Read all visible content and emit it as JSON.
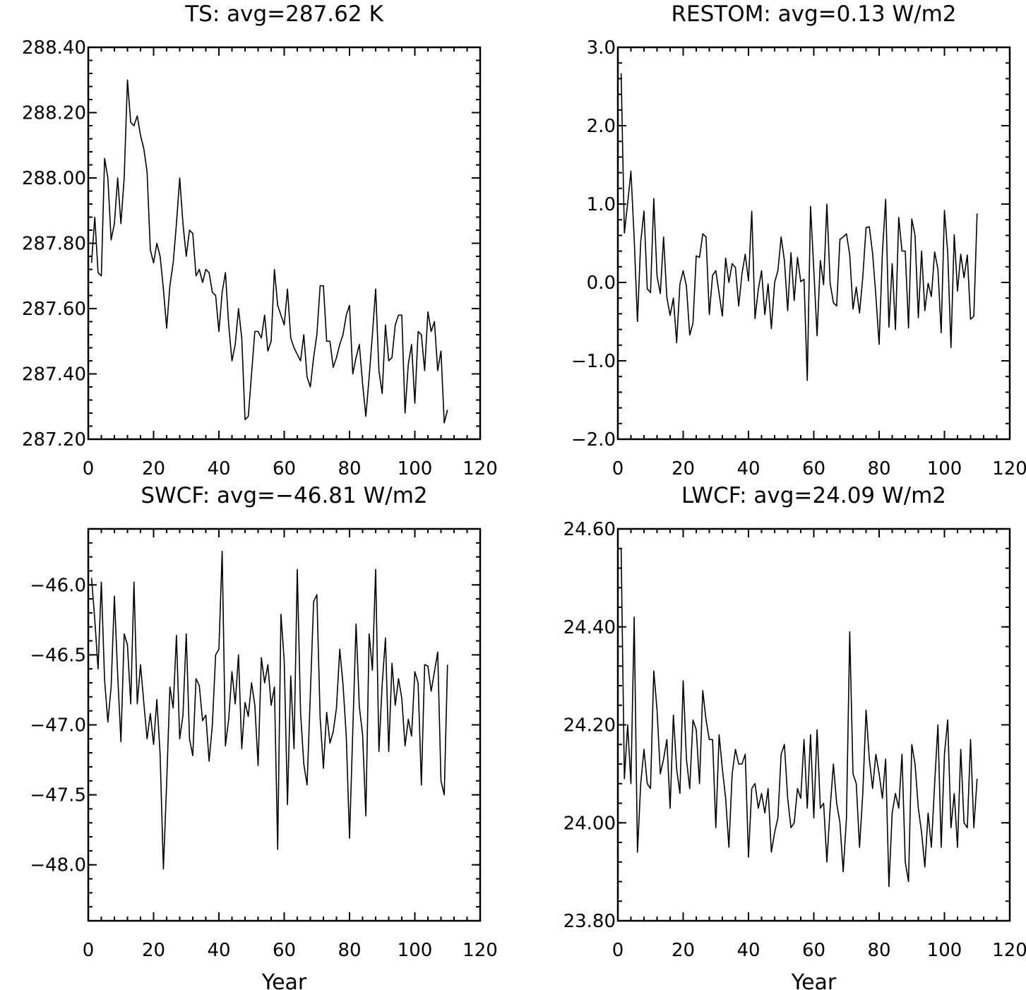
{
  "chart_data": [
    {
      "type": "line",
      "title": "TS: avg=287.62 K",
      "xlabel": "",
      "ylabel": "",
      "xlim": [
        0,
        120
      ],
      "ylim": [
        287.2,
        288.4
      ],
      "xticks": [
        0,
        20,
        40,
        60,
        80,
        100,
        120
      ],
      "xtick_labels": [
        "0",
        "20",
        "40",
        "60",
        "80",
        "100",
        "120"
      ],
      "yticks": [
        287.2,
        287.4,
        287.6,
        287.8,
        288.0,
        288.2,
        288.4
      ],
      "ytick_labels": [
        "287.20",
        "287.40",
        "287.60",
        "287.80",
        "288.00",
        "288.20",
        "288.40"
      ],
      "series": [
        {
          "x_start": 1,
          "x_step": 1,
          "values": [
            287.74,
            287.88,
            287.71,
            287.7,
            288.06,
            288.0,
            287.81,
            287.86,
            288.0,
            287.86,
            288.0,
            288.3,
            288.17,
            288.16,
            288.19,
            288.13,
            288.09,
            288.02,
            287.78,
            287.74,
            287.8,
            287.76,
            287.66,
            287.54,
            287.67,
            287.74,
            287.86,
            288.0,
            287.86,
            287.76,
            287.84,
            287.83,
            287.7,
            287.72,
            287.68,
            287.72,
            287.71,
            287.65,
            287.64,
            287.53,
            287.65,
            287.71,
            287.55,
            287.44,
            287.49,
            287.6,
            287.51,
            287.26,
            287.27,
            287.4,
            287.53,
            287.53,
            287.51,
            287.58,
            287.47,
            287.5,
            287.72,
            287.61,
            287.58,
            287.55,
            287.66,
            287.51,
            287.48,
            287.46,
            287.44,
            287.52,
            287.39,
            287.36,
            287.45,
            287.52,
            287.67,
            287.67,
            287.5,
            287.5,
            287.42,
            287.45,
            287.49,
            287.52,
            287.58,
            287.61,
            287.4,
            287.45,
            287.49,
            287.37,
            287.27,
            287.39,
            287.52,
            287.66,
            287.41,
            287.34,
            287.55,
            287.44,
            287.45,
            287.55,
            287.58,
            287.58,
            287.28,
            287.43,
            287.49,
            287.31,
            287.53,
            287.52,
            287.41,
            287.59,
            287.53,
            287.56,
            287.41,
            287.47,
            287.25,
            287.29
          ]
        }
      ]
    },
    {
      "type": "line",
      "title": "RESTOM: avg=0.13 W/m2",
      "xlabel": "",
      "ylabel": "",
      "xlim": [
        0,
        120
      ],
      "ylim": [
        -2.0,
        3.0
      ],
      "xticks": [
        0,
        20,
        40,
        60,
        80,
        100,
        120
      ],
      "xtick_labels": [
        "0",
        "20",
        "40",
        "60",
        "80",
        "100",
        "120"
      ],
      "yticks": [
        -2.0,
        -1.0,
        0.0,
        1.0,
        2.0,
        3.0
      ],
      "ytick_labels": [
        "−2.0",
        "−1.0",
        "0.0",
        "1.0",
        "2.0",
        "3.0"
      ],
      "series": [
        {
          "x_start": 1,
          "x_step": 1,
          "values": [
            2.67,
            0.63,
            1.01,
            1.42,
            0.56,
            -0.5,
            0.52,
            0.91,
            -0.08,
            -0.13,
            1.07,
            0.08,
            -0.14,
            0.58,
            -0.19,
            -0.42,
            -0.2,
            -0.77,
            -0.02,
            0.15,
            -0.05,
            -0.67,
            -0.52,
            0.34,
            0.32,
            0.62,
            0.58,
            -0.41,
            0.09,
            0.15,
            -0.14,
            -0.43,
            0.31,
            0.0,
            0.24,
            0.19,
            -0.3,
            0.11,
            0.36,
            0.02,
            0.91,
            -0.46,
            -0.09,
            0.15,
            -0.41,
            -0.02,
            -0.59,
            0.0,
            0.15,
            0.58,
            0.28,
            -0.36,
            0.38,
            -0.23,
            0.32,
            0.01,
            0.04,
            -1.25,
            0.97,
            0.16,
            -0.68,
            0.28,
            -0.03,
            1.0,
            -0.01,
            -0.26,
            -0.3,
            0.55,
            0.58,
            0.62,
            0.35,
            -0.34,
            -0.06,
            -0.39,
            0.07,
            0.7,
            0.71,
            0.37,
            -0.17,
            -0.79,
            0.38,
            1.06,
            -0.57,
            0.24,
            -0.6,
            0.83,
            0.4,
            0.4,
            -0.58,
            0.81,
            0.6,
            -0.45,
            0.4,
            -0.36,
            -0.01,
            -0.18,
            0.39,
            0.17,
            -0.64,
            0.92,
            0.38,
            -0.83,
            0.61,
            -0.11,
            0.36,
            0.06,
            0.35,
            -0.47,
            -0.43,
            0.88
          ]
        }
      ]
    },
    {
      "type": "line",
      "title": "SWCF: avg=−46.81 W/m2",
      "xlabel": "Year",
      "ylabel": "",
      "xlim": [
        0,
        120
      ],
      "ylim": [
        -48.4,
        -45.6
      ],
      "xticks": [
        0,
        20,
        40,
        60,
        80,
        100,
        120
      ],
      "xtick_labels": [
        "0",
        "20",
        "40",
        "60",
        "80",
        "100",
        "120"
      ],
      "yticks": [
        -48.0,
        -47.5,
        -47.0,
        -46.5,
        -46.0
      ],
      "ytick_labels": [
        "−48.0",
        "−47.5",
        "−47.0",
        "−46.5",
        "−46.0"
      ],
      "series": [
        {
          "x_start": 1,
          "x_step": 1,
          "values": [
            -45.95,
            -46.25,
            -46.6,
            -45.98,
            -46.68,
            -46.98,
            -46.73,
            -46.08,
            -46.64,
            -47.12,
            -46.35,
            -46.43,
            -46.85,
            -45.98,
            -46.85,
            -46.57,
            -46.84,
            -47.1,
            -46.92,
            -47.14,
            -46.82,
            -47.21,
            -48.03,
            -47.42,
            -46.73,
            -46.88,
            -46.36,
            -47.1,
            -46.93,
            -46.35,
            -47.1,
            -47.22,
            -46.67,
            -46.72,
            -46.97,
            -46.93,
            -47.26,
            -47.0,
            -46.5,
            -46.46,
            -45.76,
            -47.15,
            -46.96,
            -46.62,
            -46.85,
            -46.5,
            -47.17,
            -46.84,
            -46.94,
            -46.7,
            -46.86,
            -47.29,
            -46.52,
            -46.7,
            -46.57,
            -46.86,
            -46.73,
            -47.89,
            -46.21,
            -46.54,
            -47.57,
            -46.65,
            -47.17,
            -45.89,
            -46.91,
            -47.28,
            -47.43,
            -46.78,
            -46.12,
            -46.07,
            -46.95,
            -47.31,
            -46.91,
            -47.13,
            -47.05,
            -46.88,
            -46.46,
            -46.71,
            -47.08,
            -47.81,
            -47.04,
            -46.28,
            -46.87,
            -47.07,
            -47.65,
            -46.35,
            -46.61,
            -45.89,
            -47.19,
            -46.71,
            -46.38,
            -47.19,
            -46.56,
            -46.86,
            -46.67,
            -46.81,
            -47.15,
            -46.96,
            -47.08,
            -46.62,
            -46.7,
            -47.43,
            -46.57,
            -46.58,
            -46.76,
            -46.62,
            -46.48,
            -47.4,
            -47.5,
            -46.57
          ]
        }
      ]
    },
    {
      "type": "line",
      "title": "LWCF: avg=24.09 W/m2",
      "xlabel": "Year",
      "ylabel": "",
      "xlim": [
        0,
        120
      ],
      "ylim": [
        23.8,
        24.6
      ],
      "xticks": [
        0,
        20,
        40,
        60,
        80,
        100,
        120
      ],
      "xtick_labels": [
        "0",
        "20",
        "40",
        "60",
        "80",
        "100",
        "120"
      ],
      "yticks": [
        23.8,
        24.0,
        24.2,
        24.4,
        24.6
      ],
      "ytick_labels": [
        "23.80",
        "24.00",
        "24.20",
        "24.40",
        "24.60"
      ],
      "series": [
        {
          "x_start": 1,
          "x_step": 1,
          "values": [
            24.56,
            24.09,
            24.2,
            24.08,
            24.42,
            23.94,
            24.08,
            24.15,
            24.08,
            24.07,
            24.31,
            24.23,
            24.1,
            24.13,
            24.17,
            24.03,
            24.22,
            24.11,
            24.06,
            24.29,
            24.13,
            24.07,
            24.21,
            24.19,
            24.08,
            24.27,
            24.21,
            24.17,
            24.17,
            23.99,
            24.18,
            24.11,
            24.05,
            23.95,
            24.1,
            24.15,
            24.12,
            24.12,
            24.14,
            23.93,
            24.07,
            24.08,
            24.03,
            24.06,
            24.02,
            24.07,
            23.94,
            23.98,
            24.01,
            24.14,
            24.16,
            24.05,
            23.99,
            24.0,
            24.07,
            24.05,
            24.17,
            24.03,
            24.18,
            24.01,
            24.19,
            24.03,
            24.04,
            23.92,
            24.03,
            24.12,
            24.04,
            24.0,
            23.9,
            24.01,
            24.39,
            24.1,
            24.08,
            23.95,
            24.06,
            24.23,
            24.13,
            24.07,
            24.14,
            24.1,
            24.05,
            24.13,
            23.87,
            24.02,
            24.06,
            24.03,
            24.14,
            23.92,
            23.88,
            24.16,
            24.12,
            24.03,
            23.98,
            23.91,
            24.02,
            23.95,
            24.08,
            24.2,
            23.95,
            24.14,
            24.21,
            23.99,
            24.06,
            23.95,
            24.15,
            24.0,
            23.99,
            24.17,
            23.99,
            24.09
          ]
        }
      ]
    }
  ]
}
